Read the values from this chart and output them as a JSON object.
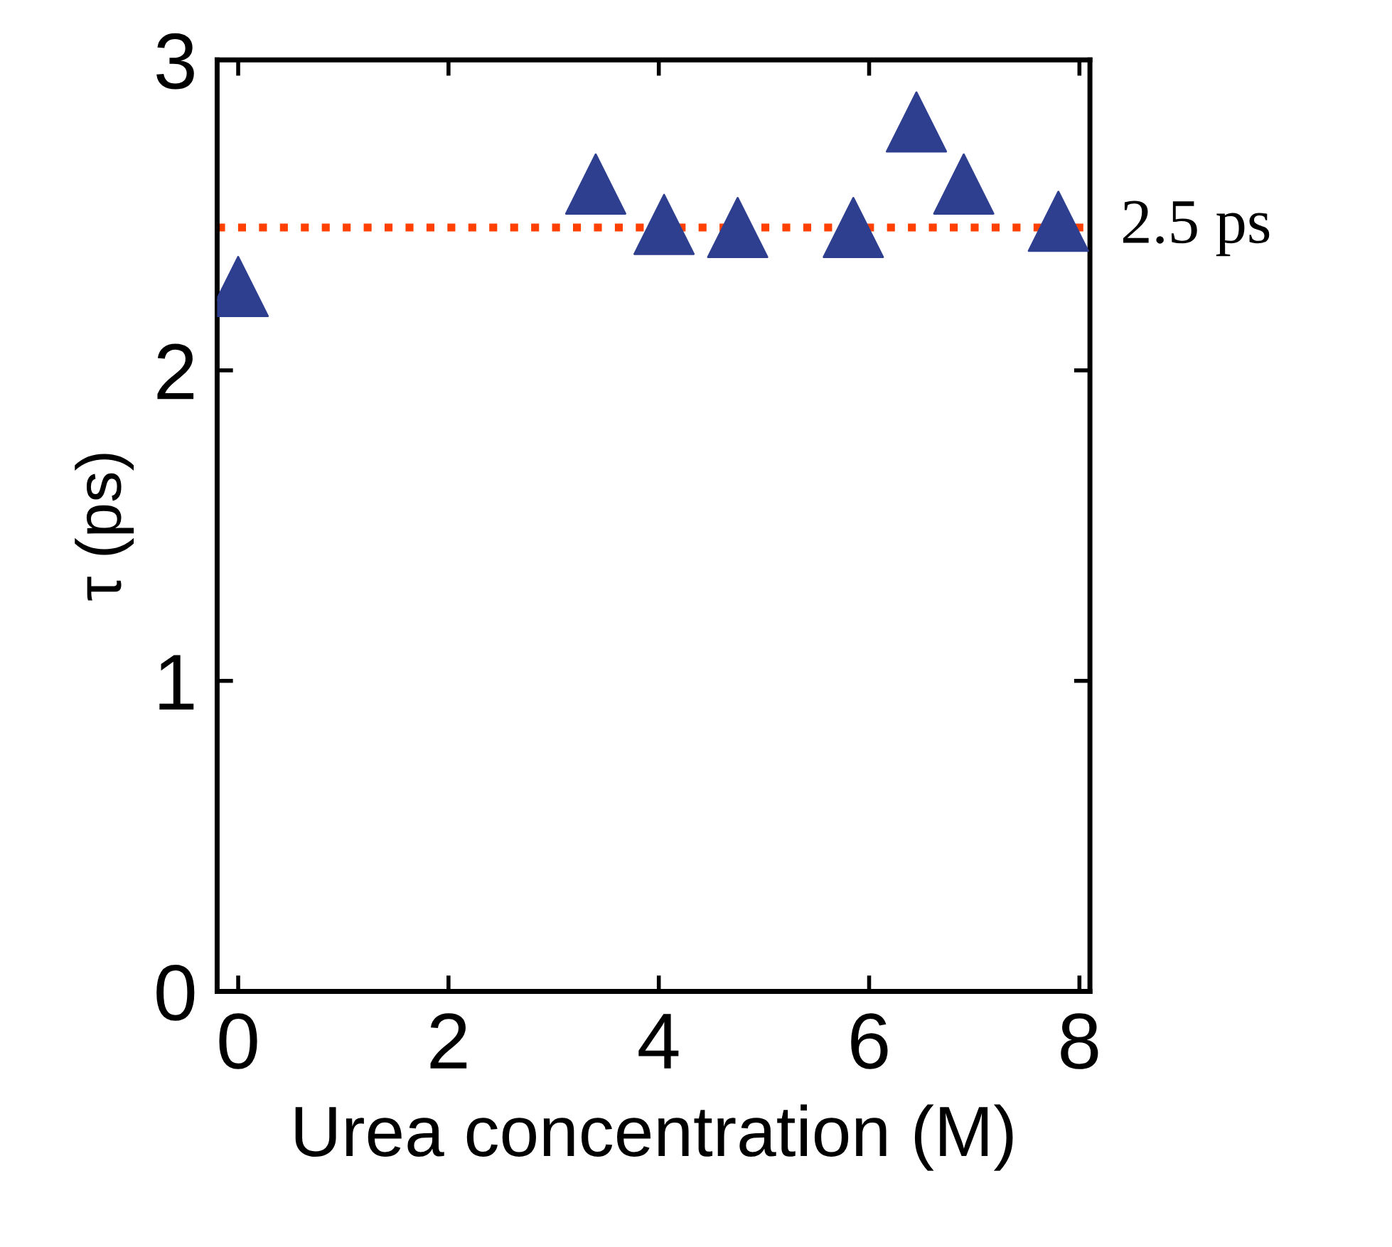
{
  "chart_data": {
    "type": "scatter",
    "xlabel": "Urea concentration (M)",
    "ylabel": "τ (ps)",
    "x": [
      0,
      3.4,
      4.05,
      4.75,
      5.85,
      6.45,
      6.9,
      7.8
    ],
    "series": [
      {
        "color": "#2e3f8f",
        "values": [
          2.27,
          2.6,
          2.47,
          2.46,
          2.46,
          2.8,
          2.6,
          2.48
        ]
      }
    ],
    "marker": "triangle",
    "xlim": [
      -0.2,
      8.1
    ],
    "xticks": [
      0,
      2,
      4,
      6,
      8
    ],
    "ylim": [
      0,
      3
    ],
    "yticks": [
      0,
      1,
      2,
      3
    ],
    "ref_lines": [
      {
        "axis": "y",
        "value": 2.46,
        "label": "2.5 ps",
        "color": "#ff4000",
        "line_style": "dotted"
      }
    ],
    "grid": false,
    "legend": false
  }
}
